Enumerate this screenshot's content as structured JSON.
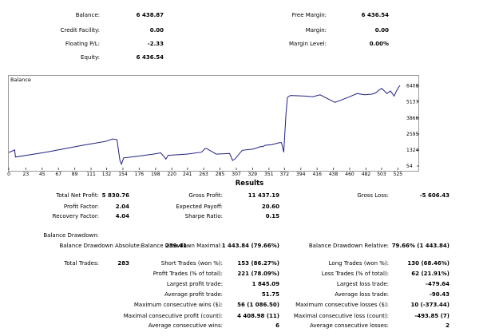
{
  "account": {
    "balance_label": "Balance:",
    "balance_value": "6 438.87",
    "credit_label": "Credit Facility:",
    "credit_value": "0.00",
    "floating_label": "Floating P/L:",
    "floating_value": "-2.33",
    "equity_label": "Equity:",
    "equity_value": "6 436.54",
    "free_margin_label": "Free Margin:",
    "free_margin_value": "6 436.54",
    "margin_label": "Margin:",
    "margin_value": "0.00",
    "margin_level_label": "Margin Level:",
    "margin_level_value": "0.00%"
  },
  "chart_data": {
    "type": "line",
    "title": "Balance",
    "series": [
      {
        "x": [
          0,
          8,
          9,
          50,
          100,
          130,
          140,
          146,
          150,
          152,
          155,
          170,
          195,
          205,
          210,
          212,
          215,
          240,
          260,
          265,
          268,
          280,
          298,
          302,
          305,
          315,
          330,
          340,
          343,
          346,
          355,
          365,
          368,
          371,
          374,
          376,
          380,
          400,
          410,
          420,
          440,
          460,
          470,
          480,
          490,
          495,
          500,
          503,
          507,
          510,
          515,
          520,
          523,
          526,
          528
        ],
        "y": [
          1124,
          1324,
          764,
          1150,
          1700,
          2000,
          2200,
          2150,
          500,
          200,
          700,
          800,
          1000,
          1100,
          760,
          600,
          900,
          1000,
          1150,
          1450,
          1400,
          1000,
          1050,
          500,
          600,
          1300,
          1400,
          1600,
          1600,
          1700,
          1750,
          1900,
          1900,
          1150,
          4200,
          5500,
          5650,
          5600,
          5550,
          5700,
          5100,
          5550,
          5800,
          5700,
          5750,
          5850,
          6100,
          6200,
          6000,
          5800,
          6000,
          5600,
          6000,
          6300,
          6438.87
        ]
      }
    ],
    "x_ticks": [
      "0",
      "23",
      "45",
      "67",
      "89",
      "111",
      "132",
      "154",
      "176",
      "198",
      "220",
      "241",
      "263",
      "285",
      "307",
      "329",
      "351",
      "372",
      "394",
      "416",
      "438",
      "460",
      "482",
      "503",
      "525"
    ],
    "y_ticks": [
      "6408",
      "5137",
      "3866",
      "2595",
      "1324",
      "54"
    ],
    "xlim": [
      0,
      530
    ],
    "ylim": [
      54,
      6700
    ],
    "grid": false,
    "color": "#202080"
  },
  "results": {
    "title": "Results",
    "net_profit_label": "Total Net Profit:",
    "net_profit_value": "5 830.76",
    "gross_profit_label": "Gross Profit:",
    "gross_profit_value": "11 437.19",
    "gross_loss_label": "Gross Loss:",
    "gross_loss_value": "-5 606.43",
    "profit_factor_label": "Profit Factor:",
    "profit_factor_value": "2.04",
    "expected_payoff_label": "Expected Payoff:",
    "expected_payoff_value": "20.60",
    "recovery_factor_label": "Recovery Factor:",
    "recovery_factor_value": "4.04",
    "sharpe_label": "Sharpe Ratio:",
    "sharpe_value": "0.15",
    "drawdown_label": "Balance Drawdown:",
    "dd_abs_label": "Balance Drawdown Absolute:",
    "dd_abs_value": "239.41",
    "dd_max_label": "Balance Drawdown Maximal:",
    "dd_max_value": "1 443.84 (79.66%)",
    "dd_rel_label": "Balance Drawdown Relative:",
    "dd_rel_value": "79.66% (1 443.84)",
    "total_trades_label": "Total Trades:",
    "total_trades_value": "283",
    "short_label": "Short Trades (won %):",
    "short_value": "153 (86.27%)",
    "long_label": "Long Trades (won %):",
    "long_value": "130 (68.46%)",
    "profit_trades_label": "Profit Trades (% of total):",
    "profit_trades_value": "221 (78.09%)",
    "loss_trades_label": "Loss Trades (% of total):",
    "loss_trades_value": "62 (21.91%)",
    "largest_profit_label": "Largest profit trade:",
    "largest_profit_value": "1 845.09",
    "largest_loss_label": "Largest loss trade:",
    "largest_loss_value": "-479.64",
    "avg_profit_label": "Average profit trade:",
    "avg_profit_value": "51.75",
    "avg_loss_label": "Average loss trade:",
    "avg_loss_value": "-90.43",
    "max_cons_wins_label": "Maximum consecutive wins ($):",
    "max_cons_wins_value": "56 (1 086.50)",
    "max_cons_losses_label": "Maximum consecutive losses ($):",
    "max_cons_losses_value": "10 (-373.44)",
    "max_cons_profit_label": "Maximal consecutive profit (count):",
    "max_cons_profit_value": "4 408.98 (11)",
    "max_cons_loss_label": "Maximal consecutive loss (count):",
    "max_cons_loss_value": "-493.85 (7)",
    "avg_cons_wins_label": "Average consecutive wins:",
    "avg_cons_wins_value": "6",
    "avg_cons_losses_label": "Average consecutive losses:",
    "avg_cons_losses_value": "2"
  }
}
